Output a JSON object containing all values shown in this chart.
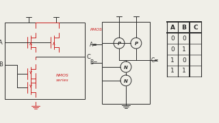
{
  "bg_color": "#f0efe8",
  "line_color": "#2a2a2a",
  "red_color": "#cc2222",
  "truth_table": {
    "headers": [
      "A",
      "B",
      "C"
    ],
    "rows": [
      [
        "0",
        "0",
        ""
      ],
      [
        "0",
        "1",
        ""
      ],
      [
        "1",
        "0",
        ""
      ],
      [
        "1",
        "1",
        ""
      ]
    ]
  },
  "pmos_label": "PMOS",
  "nmos_label": "NMOS",
  "nmos_label2": "series"
}
